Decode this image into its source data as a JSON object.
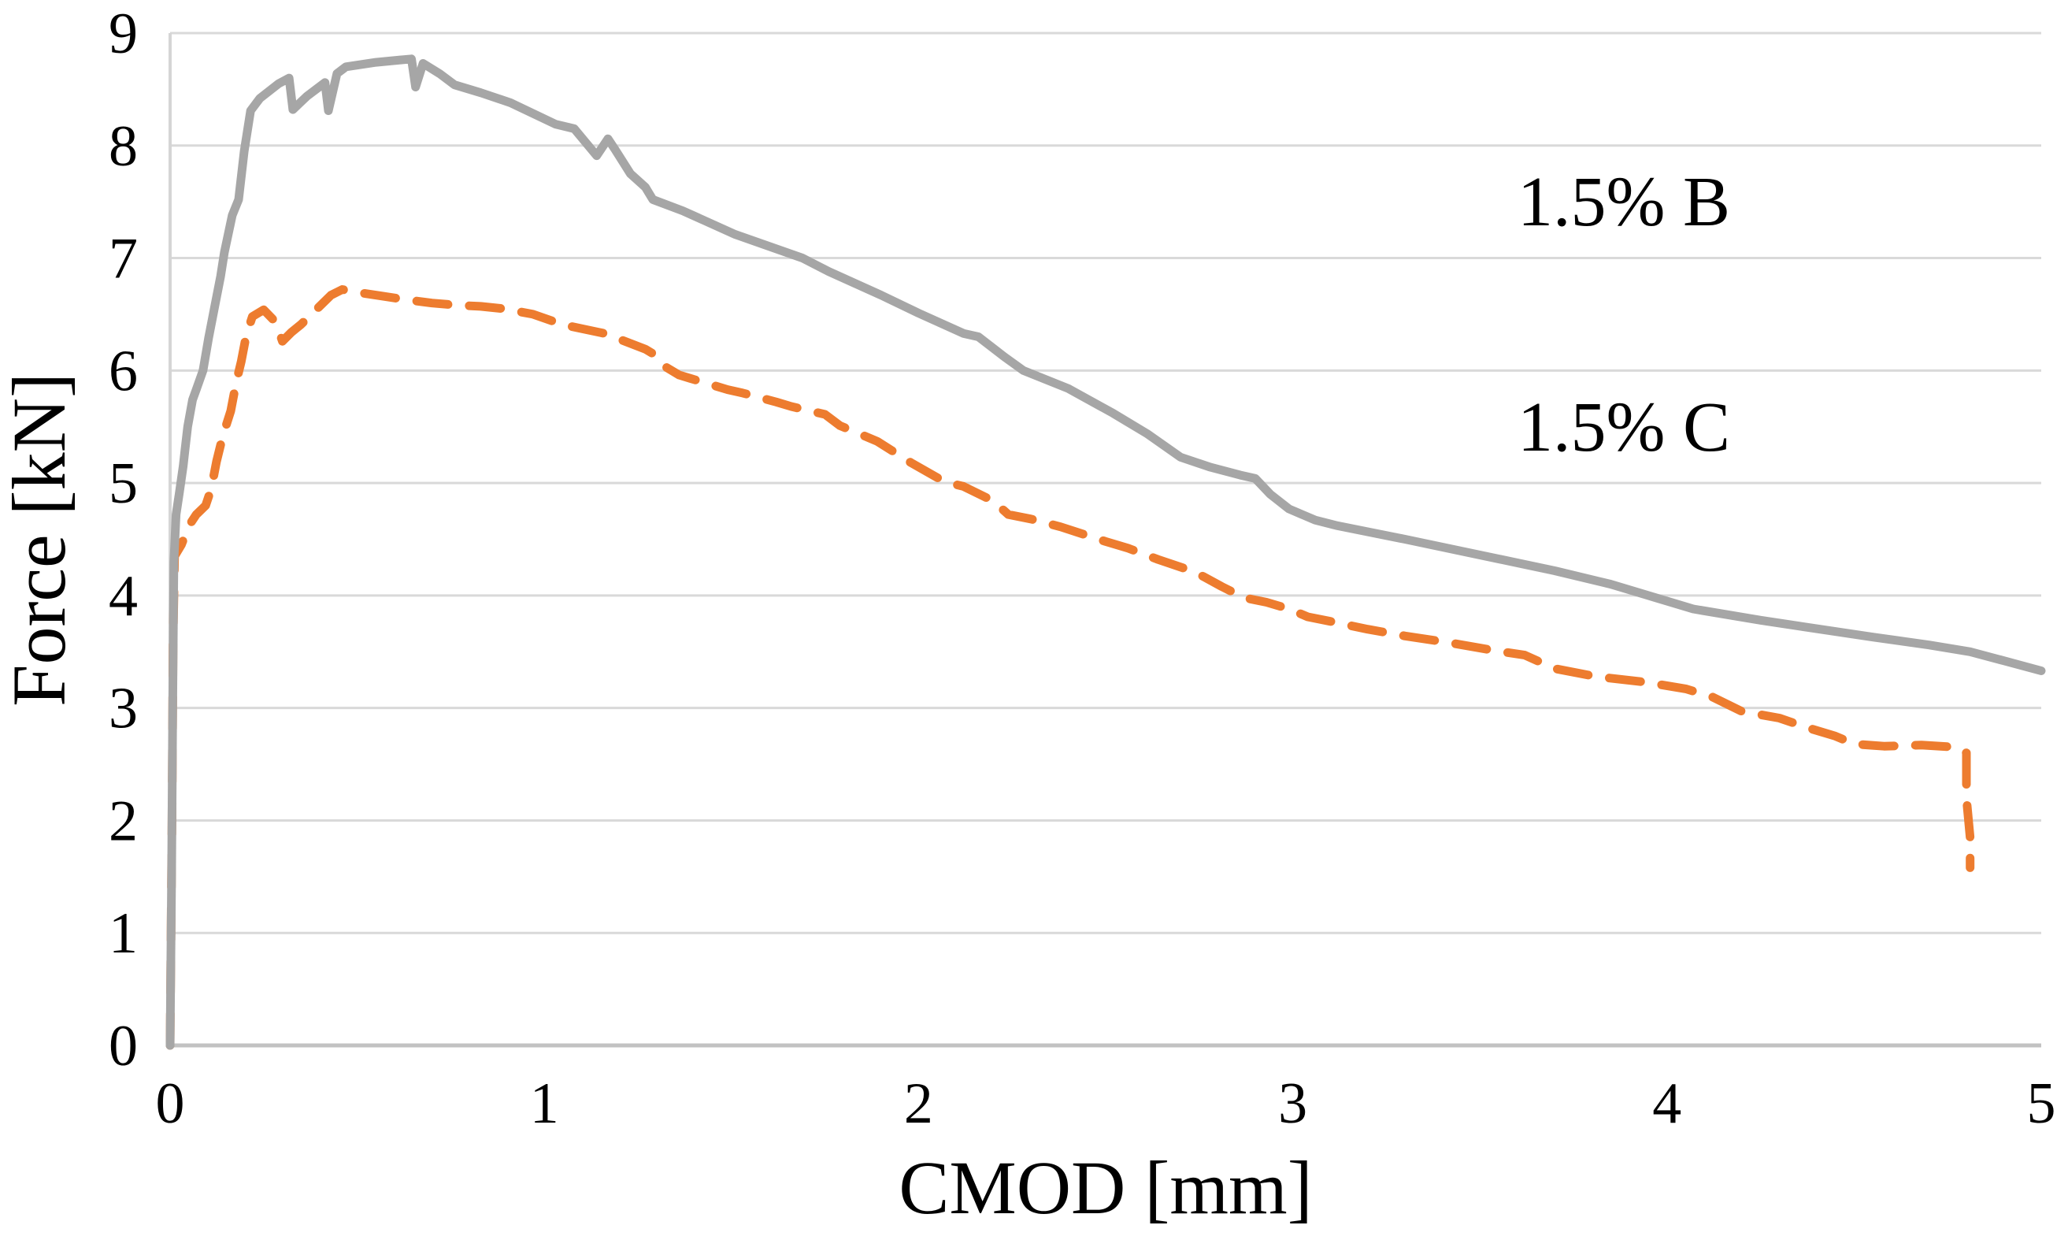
{
  "chart_data": {
    "type": "line",
    "title": "",
    "xlabel": "CMOD [mm]",
    "ylabel": "Force [kN]",
    "xlim": [
      0,
      5
    ],
    "ylim": [
      0,
      9
    ],
    "x_ticks": [
      0,
      1,
      2,
      3,
      4,
      5
    ],
    "y_ticks": [
      0,
      1,
      2,
      3,
      4,
      5,
      6,
      7,
      8,
      9
    ],
    "x_tick_labels": [
      "0",
      "1",
      "2",
      "3",
      "4",
      "5"
    ],
    "y_tick_labels": [
      "0",
      "1",
      "2",
      "3",
      "4",
      "5",
      "6",
      "7",
      "8",
      "9"
    ],
    "grid": "horizontal",
    "legend_position": "inside-top-right",
    "colors": {
      "series_b": "#ED7C2F",
      "series_c": "#A6A6A6",
      "gridline": "#D9D9D9",
      "y_axis_line": "#D5D5D5",
      "x_axis_line": "#C2C2C2",
      "text": "#000000",
      "background": "#FFFFFF"
    },
    "series": [
      {
        "name": "1.5% B",
        "color": "#ED7C2F",
        "style": "dashed",
        "stroke_width": 11,
        "points": [
          [
            0,
            0
          ],
          [
            0.005,
            2.0
          ],
          [
            0.008,
            3.6
          ],
          [
            0.012,
            4.35
          ],
          [
            0.03,
            4.45
          ],
          [
            0.05,
            4.62
          ],
          [
            0.07,
            4.72
          ],
          [
            0.095,
            4.8
          ],
          [
            0.11,
            4.95
          ],
          [
            0.124,
            5.19
          ],
          [
            0.141,
            5.42
          ],
          [
            0.162,
            5.64
          ],
          [
            0.177,
            5.9
          ],
          [
            0.19,
            6.08
          ],
          [
            0.204,
            6.32
          ],
          [
            0.22,
            6.48
          ],
          [
            0.25,
            6.54
          ],
          [
            0.282,
            6.43
          ],
          [
            0.3,
            6.26
          ],
          [
            0.324,
            6.34
          ],
          [
            0.35,
            6.41
          ],
          [
            0.43,
            6.67
          ],
          [
            0.46,
            6.72
          ],
          [
            0.51,
            6.69
          ],
          [
            0.57,
            6.66
          ],
          [
            0.63,
            6.63
          ],
          [
            0.7,
            6.6
          ],
          [
            0.77,
            6.58
          ],
          [
            0.83,
            6.57
          ],
          [
            0.89,
            6.55
          ],
          [
            0.97,
            6.5
          ],
          [
            1.03,
            6.43
          ],
          [
            1.06,
            6.4
          ],
          [
            1.16,
            6.33
          ],
          [
            1.2,
            6.28
          ],
          [
            1.27,
            6.19
          ],
          [
            1.3,
            6.13
          ],
          [
            1.32,
            6.04
          ],
          [
            1.36,
            5.96
          ],
          [
            1.39,
            5.93
          ],
          [
            1.49,
            5.83
          ],
          [
            1.53,
            5.8
          ],
          [
            1.62,
            5.72
          ],
          [
            1.66,
            5.68
          ],
          [
            1.75,
            5.61
          ],
          [
            1.79,
            5.51
          ],
          [
            1.89,
            5.37
          ],
          [
            1.98,
            5.18
          ],
          [
            2.07,
            5.01
          ],
          [
            2.12,
            4.97
          ],
          [
            2.2,
            4.84
          ],
          [
            2.24,
            4.72
          ],
          [
            2.3,
            4.68
          ],
          [
            2.38,
            4.61
          ],
          [
            2.5,
            4.48
          ],
          [
            2.56,
            4.42
          ],
          [
            2.64,
            4.32
          ],
          [
            2.72,
            4.23
          ],
          [
            2.76,
            4.17
          ],
          [
            2.81,
            4.08
          ],
          [
            2.87,
            3.98
          ],
          [
            2.93,
            3.94
          ],
          [
            2.99,
            3.88
          ],
          [
            3.04,
            3.81
          ],
          [
            3.1,
            3.77
          ],
          [
            3.2,
            3.7
          ],
          [
            3.3,
            3.64
          ],
          [
            3.42,
            3.58
          ],
          [
            3.54,
            3.51
          ],
          [
            3.62,
            3.47
          ],
          [
            3.7,
            3.35
          ],
          [
            3.81,
            3.28
          ],
          [
            3.94,
            3.23
          ],
          [
            4.05,
            3.17
          ],
          [
            4.12,
            3.1
          ],
          [
            4.2,
            2.97
          ],
          [
            4.3,
            2.91
          ],
          [
            4.38,
            2.82
          ],
          [
            4.45,
            2.75
          ],
          [
            4.5,
            2.68
          ],
          [
            4.58,
            2.66
          ],
          [
            4.68,
            2.67
          ],
          [
            4.78,
            2.65
          ],
          [
            4.8,
            2.6
          ],
          [
            4.8,
            2.2
          ],
          [
            4.81,
            1.85
          ],
          [
            4.81,
            1.58
          ]
        ]
      },
      {
        "name": "1.5% C",
        "color": "#A6A6A6",
        "style": "solid",
        "stroke_width": 11,
        "points": [
          [
            0,
            0
          ],
          [
            0.004,
            1.5
          ],
          [
            0.007,
            3.0
          ],
          [
            0.01,
            4.3
          ],
          [
            0.016,
            4.72
          ],
          [
            0.025,
            4.92
          ],
          [
            0.035,
            5.15
          ],
          [
            0.04,
            5.3
          ],
          [
            0.047,
            5.5
          ],
          [
            0.06,
            5.74
          ],
          [
            0.072,
            5.85
          ],
          [
            0.088,
            6.0
          ],
          [
            0.103,
            6.29
          ],
          [
            0.118,
            6.55
          ],
          [
            0.135,
            6.84
          ],
          [
            0.145,
            7.05
          ],
          [
            0.166,
            7.38
          ],
          [
            0.183,
            7.52
          ],
          [
            0.198,
            7.95
          ],
          [
            0.215,
            8.31
          ],
          [
            0.24,
            8.42
          ],
          [
            0.29,
            8.55
          ],
          [
            0.318,
            8.6
          ],
          [
            0.328,
            8.32
          ],
          [
            0.366,
            8.44
          ],
          [
            0.414,
            8.56
          ],
          [
            0.423,
            8.31
          ],
          [
            0.446,
            8.64
          ],
          [
            0.47,
            8.7
          ],
          [
            0.55,
            8.74
          ],
          [
            0.645,
            8.77
          ],
          [
            0.656,
            8.52
          ],
          [
            0.676,
            8.73
          ],
          [
            0.72,
            8.64
          ],
          [
            0.76,
            8.54
          ],
          [
            0.83,
            8.47
          ],
          [
            0.91,
            8.38
          ],
          [
            1.03,
            8.19
          ],
          [
            1.08,
            8.15
          ],
          [
            1.14,
            7.91
          ],
          [
            1.17,
            8.06
          ],
          [
            1.19,
            7.96
          ],
          [
            1.23,
            7.75
          ],
          [
            1.27,
            7.63
          ],
          [
            1.29,
            7.52
          ],
          [
            1.37,
            7.42
          ],
          [
            1.51,
            7.21
          ],
          [
            1.69,
            7.0
          ],
          [
            1.76,
            6.88
          ],
          [
            1.9,
            6.67
          ],
          [
            2.0,
            6.51
          ],
          [
            2.12,
            6.33
          ],
          [
            2.16,
            6.3
          ],
          [
            2.23,
            6.12
          ],
          [
            2.28,
            6.0
          ],
          [
            2.4,
            5.84
          ],
          [
            2.52,
            5.62
          ],
          [
            2.61,
            5.44
          ],
          [
            2.7,
            5.23
          ],
          [
            2.78,
            5.14
          ],
          [
            2.86,
            5.07
          ],
          [
            2.9,
            5.04
          ],
          [
            2.94,
            4.9
          ],
          [
            2.99,
            4.77
          ],
          [
            3.06,
            4.67
          ],
          [
            3.12,
            4.62
          ],
          [
            3.3,
            4.5
          ],
          [
            3.5,
            4.36
          ],
          [
            3.7,
            4.22
          ],
          [
            3.85,
            4.1
          ],
          [
            3.95,
            4.0
          ],
          [
            4.07,
            3.88
          ],
          [
            4.25,
            3.78
          ],
          [
            4.37,
            3.72
          ],
          [
            4.55,
            3.63
          ],
          [
            4.7,
            3.56
          ],
          [
            4.81,
            3.5
          ],
          [
            4.9,
            3.42
          ],
          [
            5.0,
            3.33
          ]
        ]
      }
    ]
  },
  "legend": {
    "items": [
      {
        "label": "1.5% B"
      },
      {
        "label": "1.5% C"
      }
    ]
  }
}
